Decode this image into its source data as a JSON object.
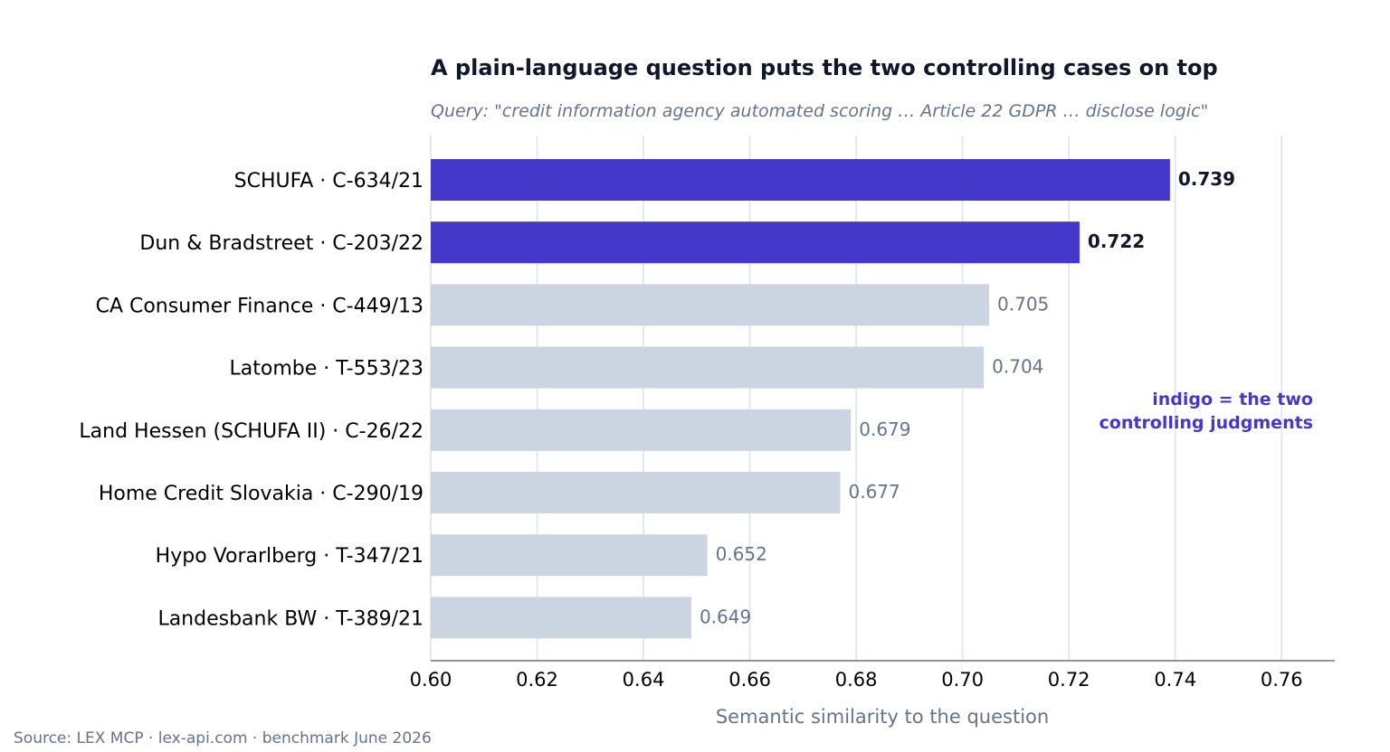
{
  "chart_data": {
    "type": "bar",
    "orientation": "horizontal",
    "title": "A plain-language question puts the two controlling cases on top",
    "subtitle": "Query: \"credit information agency automated scoring … Article 22 GDPR … disclose logic\"",
    "xlabel": "Semantic similarity to the question",
    "ylabel": "",
    "xlim": [
      0.6,
      0.77
    ],
    "xticks": [
      "0.60",
      "0.62",
      "0.64",
      "0.66",
      "0.68",
      "0.70",
      "0.72",
      "0.74",
      "0.76"
    ],
    "grid": "vertical",
    "categories": [
      "SCHUFA  ·  C-634/21",
      "Dun & Bradstreet  ·  C-203/22",
      "CA Consumer Finance  ·  C-449/13",
      "Latombe  ·  T-553/23",
      "Land Hessen (SCHUFA II)  ·  C-26/22",
      "Home Credit Slovakia  ·  C-290/19",
      "Hypo Vorarlberg  ·  T-347/21",
      "Landesbank BW  ·  T-389/21"
    ],
    "values": [
      0.739,
      0.722,
      0.705,
      0.704,
      0.679,
      0.677,
      0.652,
      0.649
    ],
    "value_labels": [
      "0.739",
      "0.722",
      "0.705",
      "0.704",
      "0.679",
      "0.677",
      "0.652",
      "0.649"
    ],
    "highlighted": [
      true,
      true,
      false,
      false,
      false,
      false,
      false,
      false
    ],
    "annotation": [
      "indigo = the two",
      "controlling judgments"
    ]
  },
  "colors": {
    "highlight": "#4338ca",
    "muted_bar": "#cbd5e1",
    "highlight_label": "#0f172a",
    "muted_label": "#64748b",
    "grid": "#e2e8f0",
    "axis": "#64748b"
  },
  "source": "Source: LEX MCP  ·  lex-api.com  ·  benchmark June 2026"
}
